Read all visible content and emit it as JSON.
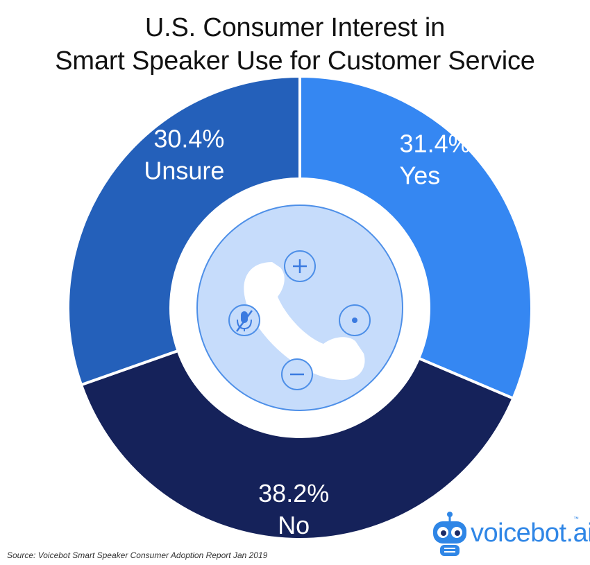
{
  "chart_data": {
    "type": "pie",
    "variant": "donut",
    "title": "U.S. Consumer Interest in Smart Speaker Use for Customer Service",
    "title_lines": [
      "U.S. Consumer Interest in",
      "Smart Speaker Use for Customer Service"
    ],
    "slices": [
      {
        "label": "Yes",
        "value": 31.4,
        "value_label": "31.4%",
        "color": "#3587f2"
      },
      {
        "label": "No",
        "value": 38.2,
        "value_label": "38.2%",
        "color": "#15225a"
      },
      {
        "label": "Unsure",
        "value": 30.4,
        "value_label": "30.4%",
        "color": "#2460ba"
      }
    ],
    "center_icon": "phone-speaker-icon",
    "label_color": "#ffffff"
  },
  "source": "Source: Voicebot Smart Speaker Consumer Adoption Report Jan 2019",
  "brand": {
    "name": "voicebot.ai",
    "tm": "™",
    "color": "#2f86e6"
  }
}
